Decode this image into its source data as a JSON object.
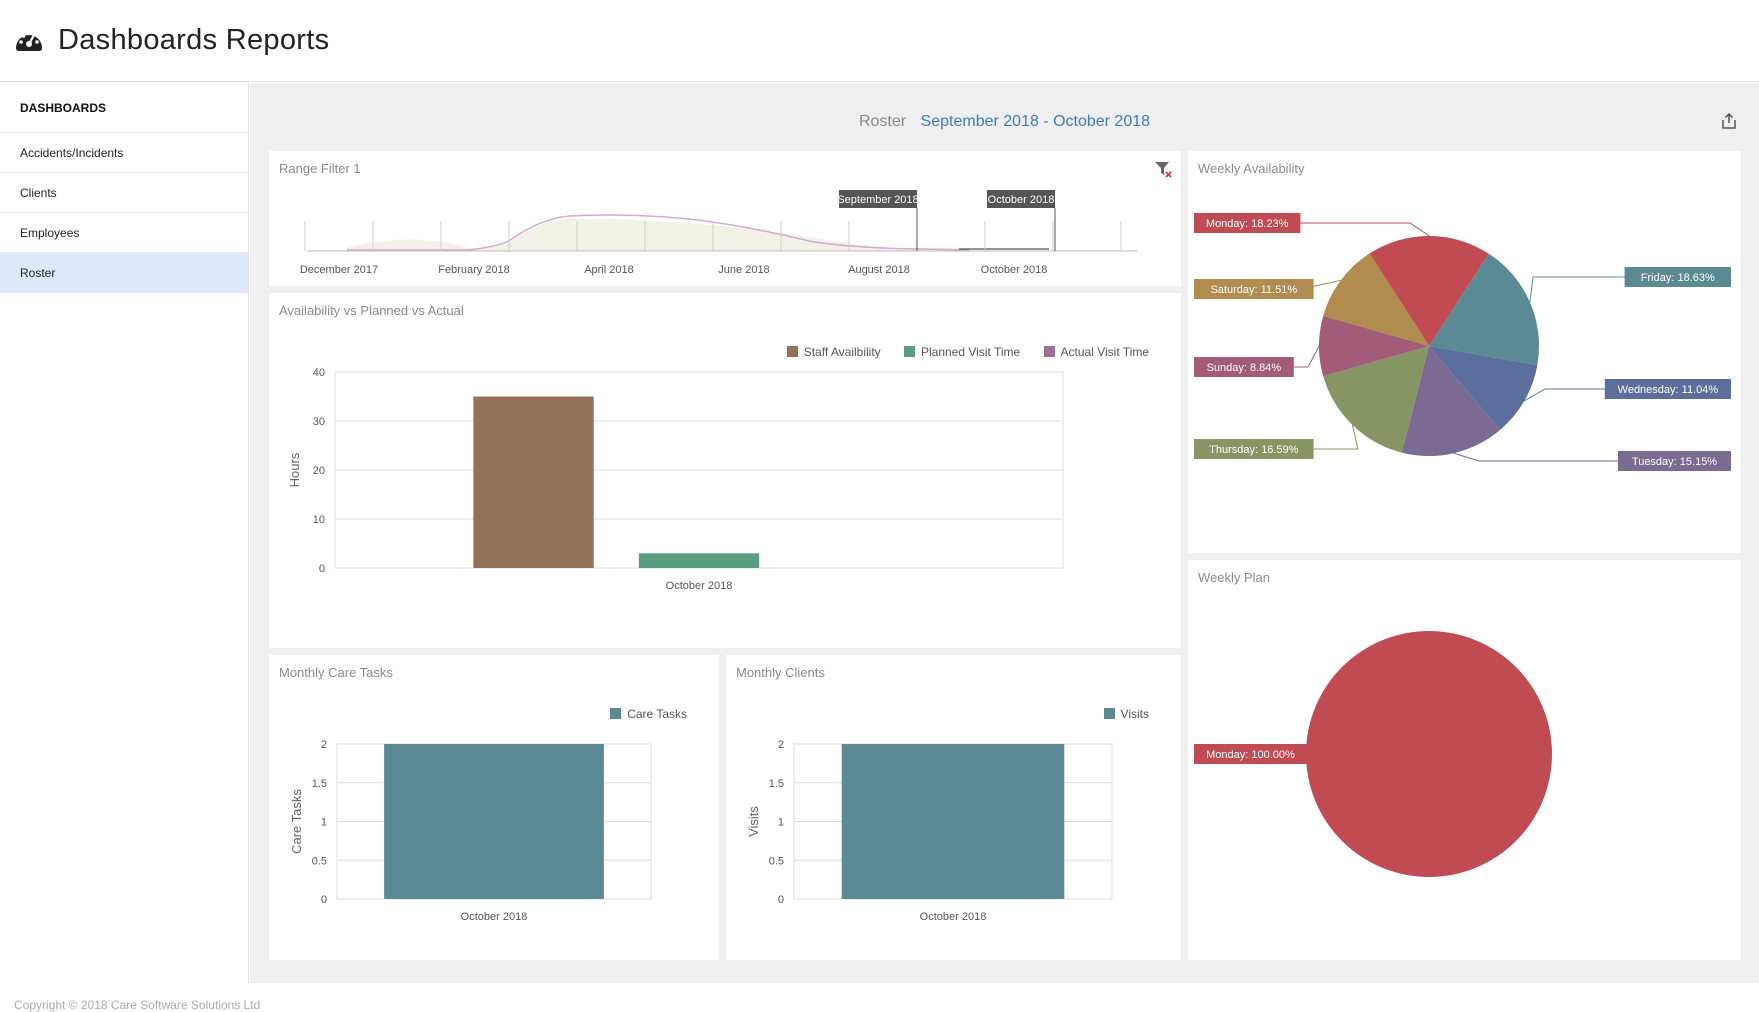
{
  "header": {
    "title": "Dashboards Reports",
    "icon": "dashboard-gauge-icon"
  },
  "sidebar": {
    "section": "DASHBOARDS",
    "items": [
      {
        "label": "Accidents/Incidents"
      },
      {
        "label": "Clients"
      },
      {
        "label": "Employees"
      },
      {
        "label": "Roster",
        "active": true
      }
    ]
  },
  "dashboard": {
    "title_prefix": "Roster",
    "title_range": "September 2018 - October 2018",
    "export_icon": "export-icon"
  },
  "range_filter": {
    "title": "Range Filter 1",
    "clear_icon": "clear-filter-icon",
    "axis_labels": [
      "December 2017",
      "February 2018",
      "April 2018",
      "June 2018",
      "August 2018",
      "October 2018"
    ],
    "selection_start": "September 2018",
    "selection_end": "October 2018"
  },
  "colors": {
    "brown": "#937058",
    "green": "#5a9e80",
    "purple": "#9f6f9a",
    "teal": "#5b8a94",
    "red": "#c04b52",
    "blue": "#5b6e9c",
    "accent": "#3a7cc4"
  },
  "avp": {
    "title": "Availability vs Planned vs Actual",
    "legend": [
      "Staff Availbility",
      "Planned Visit Time",
      "Actual Visit Time"
    ]
  },
  "monthly_tasks": {
    "title": "Monthly Care Tasks",
    "legend": "Care Tasks"
  },
  "monthly_clients": {
    "title": "Monthly Clients",
    "legend": "Visits"
  },
  "weekly_availability": {
    "title": "Weekly Availability"
  },
  "weekly_plan": {
    "title": "Weekly Plan"
  },
  "footer": {
    "text": "Copyright © 2018 Care Software Solutions Ltd"
  },
  "chart_data": [
    {
      "id": "avp",
      "type": "bar",
      "categories": [
        "October 2018"
      ],
      "series": [
        {
          "name": "Staff Availbility",
          "values": [
            35
          ],
          "color": "#937058"
        },
        {
          "name": "Planned Visit Time",
          "values": [
            3
          ],
          "color": "#5a9e80"
        },
        {
          "name": "Actual Visit Time",
          "values": [
            0
          ],
          "color": "#9f6f9a"
        }
      ],
      "ylabel": "Hours",
      "ylim": [
        0,
        40
      ],
      "yticks": [
        0,
        10,
        20,
        30,
        40
      ],
      "grid": true
    },
    {
      "id": "tasks",
      "type": "bar",
      "categories": [
        "October 2018"
      ],
      "series": [
        {
          "name": "Care Tasks",
          "values": [
            2
          ],
          "color": "#5b8a94"
        }
      ],
      "ylabel": "Care Tasks",
      "ylim": [
        0,
        2
      ],
      "yticks": [
        0,
        0.5,
        1,
        1.5,
        2
      ],
      "grid": true
    },
    {
      "id": "clients",
      "type": "bar",
      "categories": [
        "October 2018"
      ],
      "series": [
        {
          "name": "Visits",
          "values": [
            2
          ],
          "color": "#5b8a94"
        }
      ],
      "ylabel": "Visits",
      "ylim": [
        0,
        2
      ],
      "yticks": [
        0,
        0.5,
        1,
        1.5,
        2
      ],
      "grid": true
    },
    {
      "id": "weekly_availability",
      "type": "pie",
      "slices": [
        {
          "label": "Monday: 18.23%",
          "name": "Monday",
          "value": 18.23,
          "color": "#c04b52"
        },
        {
          "label": "Friday: 18.63%",
          "name": "Friday",
          "value": 18.63,
          "color": "#5b8a94"
        },
        {
          "label": "Wednesday: 11.04%",
          "name": "Wednesday",
          "value": 11.04,
          "color": "#5b6e9c"
        },
        {
          "label": "Tuesday: 15.15%",
          "name": "Tuesday",
          "value": 15.15,
          "color": "#7b6a92"
        },
        {
          "label": "Thursday: 16.59%",
          "name": "Thursday",
          "value": 16.59,
          "color": "#879463"
        },
        {
          "label": "Sunday: 8.84%",
          "name": "Sunday",
          "value": 8.84,
          "color": "#a35c78"
        },
        {
          "label": "Saturday: 11.51%",
          "name": "Saturday",
          "value": 11.51,
          "color": "#b08c4f"
        }
      ]
    },
    {
      "id": "weekly_plan",
      "type": "pie",
      "slices": [
        {
          "label": "Monday: 100.00%",
          "name": "Monday",
          "value": 100,
          "color": "#c04b52"
        }
      ]
    }
  ]
}
